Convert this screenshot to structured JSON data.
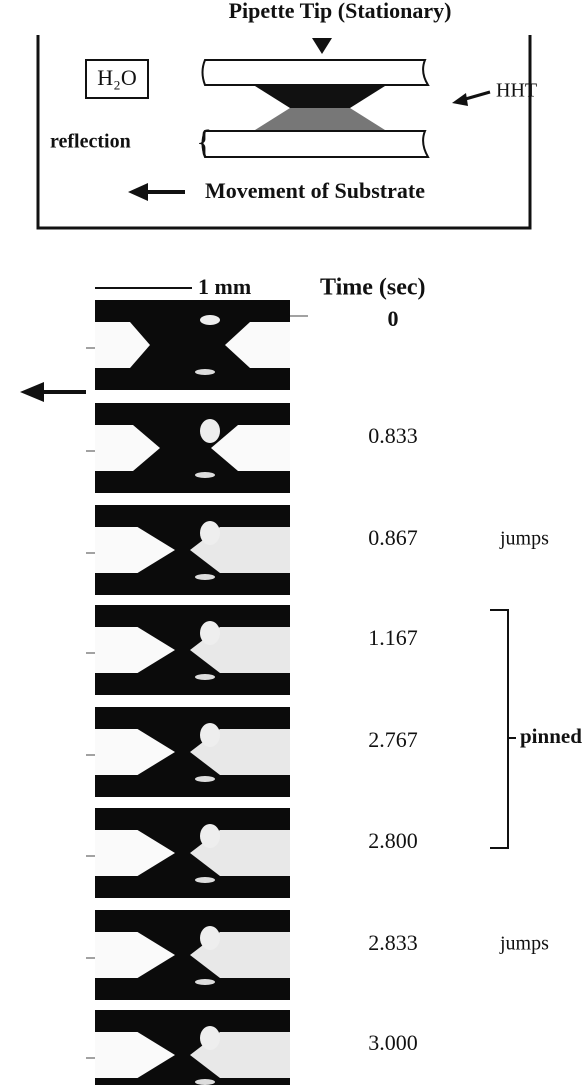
{
  "schematic": {
    "pipette_label": "Pipette Tip (Stationary)",
    "water_label": "H₂O",
    "hht_label": "HHT",
    "reflection_label": "reflection",
    "movement_label": "Movement of Substrate"
  },
  "scale_bar": "1 mm",
  "time_header": "Time (sec)",
  "frames": [
    {
      "time": "0"
    },
    {
      "time": "0.833"
    },
    {
      "time": "0.867",
      "note": "jumps"
    },
    {
      "time": "1.167"
    },
    {
      "time": "2.767"
    },
    {
      "time": "2.800"
    },
    {
      "time": "2.833",
      "note": "jumps"
    },
    {
      "time": "3.000"
    }
  ],
  "bracket_label": "pinned"
}
